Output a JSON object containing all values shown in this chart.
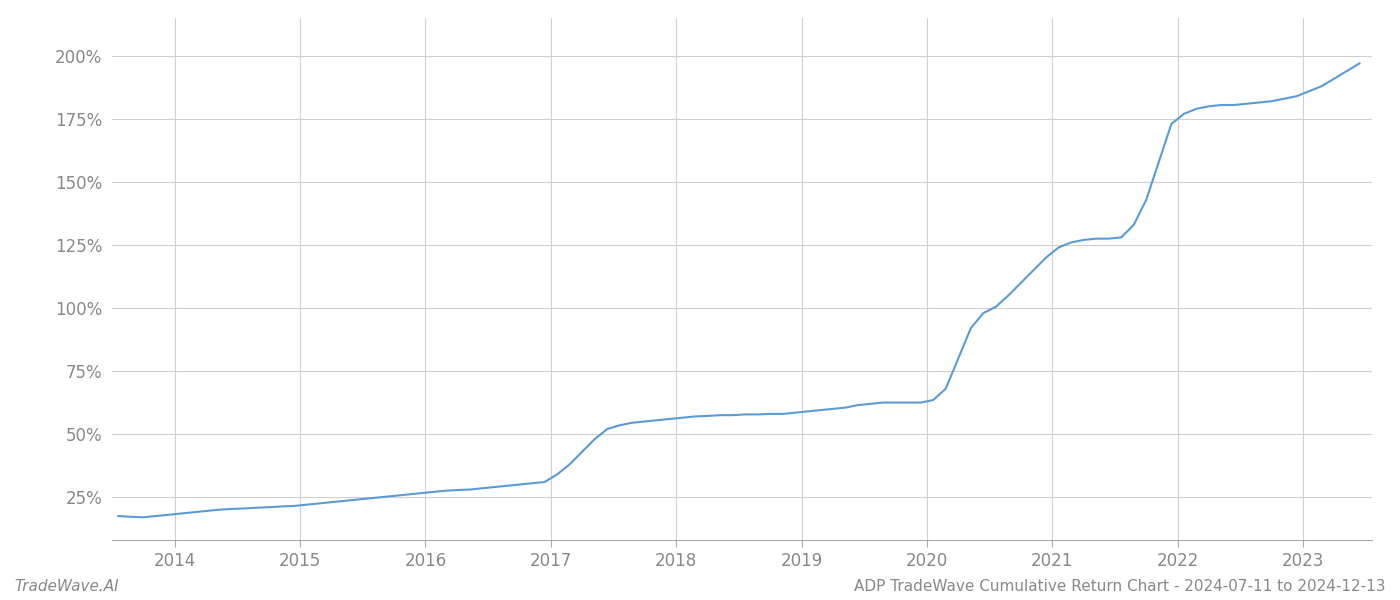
{
  "title": "ADP TradeWave Cumulative Return Chart - 2024-07-11 to 2024-12-13",
  "watermark": "TradeWave.AI",
  "line_color": "#5b9bd5",
  "background_color": "#ffffff",
  "grid_color": "#d0d0d0",
  "x_years": [
    2014,
    2015,
    2016,
    2017,
    2018,
    2019,
    2020,
    2021,
    2022,
    2023
  ],
  "x_data": [
    2013.55,
    2013.65,
    2013.75,
    2013.85,
    2013.95,
    2014.05,
    2014.15,
    2014.25,
    2014.35,
    2014.45,
    2014.55,
    2014.65,
    2014.75,
    2014.85,
    2014.95,
    2015.05,
    2015.15,
    2015.25,
    2015.35,
    2015.45,
    2015.55,
    2015.65,
    2015.75,
    2015.85,
    2015.95,
    2016.05,
    2016.15,
    2016.25,
    2016.35,
    2016.45,
    2016.55,
    2016.65,
    2016.75,
    2016.85,
    2016.95,
    2017.05,
    2017.15,
    2017.25,
    2017.35,
    2017.45,
    2017.55,
    2017.65,
    2017.75,
    2017.85,
    2017.95,
    2018.05,
    2018.15,
    2018.25,
    2018.35,
    2018.45,
    2018.55,
    2018.65,
    2018.75,
    2018.85,
    2018.95,
    2019.05,
    2019.15,
    2019.25,
    2019.35,
    2019.45,
    2019.55,
    2019.65,
    2019.75,
    2019.85,
    2019.95,
    2020.05,
    2020.15,
    2020.25,
    2020.35,
    2020.45,
    2020.55,
    2020.65,
    2020.75,
    2020.85,
    2020.95,
    2021.05,
    2021.15,
    2021.25,
    2021.35,
    2021.45,
    2021.55,
    2021.65,
    2021.75,
    2021.85,
    2021.95,
    2022.05,
    2022.15,
    2022.25,
    2022.35,
    2022.45,
    2022.55,
    2022.65,
    2022.75,
    2022.85,
    2022.95,
    2023.05,
    2023.15,
    2023.25,
    2023.35,
    2023.45
  ],
  "y_data": [
    17.5,
    17.2,
    17.0,
    17.5,
    18.0,
    18.5,
    19.0,
    19.5,
    20.0,
    20.3,
    20.5,
    20.8,
    21.0,
    21.3,
    21.5,
    22.0,
    22.5,
    23.0,
    23.5,
    24.0,
    24.5,
    25.0,
    25.5,
    26.0,
    26.5,
    27.0,
    27.5,
    27.8,
    28.0,
    28.5,
    29.0,
    29.5,
    30.0,
    30.5,
    31.0,
    34.0,
    38.0,
    43.0,
    48.0,
    52.0,
    53.5,
    54.5,
    55.0,
    55.5,
    56.0,
    56.5,
    57.0,
    57.2,
    57.5,
    57.5,
    57.8,
    57.8,
    58.0,
    58.0,
    58.5,
    59.0,
    59.5,
    60.0,
    60.5,
    61.5,
    62.0,
    62.5,
    62.5,
    62.5,
    62.5,
    63.5,
    68.0,
    80.0,
    92.0,
    98.0,
    100.5,
    105.0,
    110.0,
    115.0,
    120.0,
    124.0,
    126.0,
    127.0,
    127.5,
    127.5,
    128.0,
    133.0,
    143.0,
    158.0,
    173.0,
    177.0,
    179.0,
    180.0,
    180.5,
    180.5,
    181.0,
    181.5,
    182.0,
    183.0,
    184.0,
    186.0,
    188.0,
    191.0,
    194.0,
    197.0
  ],
  "yticks": [
    25,
    50,
    75,
    100,
    125,
    150,
    175,
    200
  ],
  "ylim": [
    8,
    215
  ],
  "xlim": [
    2013.5,
    2023.55
  ],
  "line_width": 1.5,
  "title_fontsize": 11,
  "tick_fontsize": 12,
  "watermark_fontsize": 11
}
